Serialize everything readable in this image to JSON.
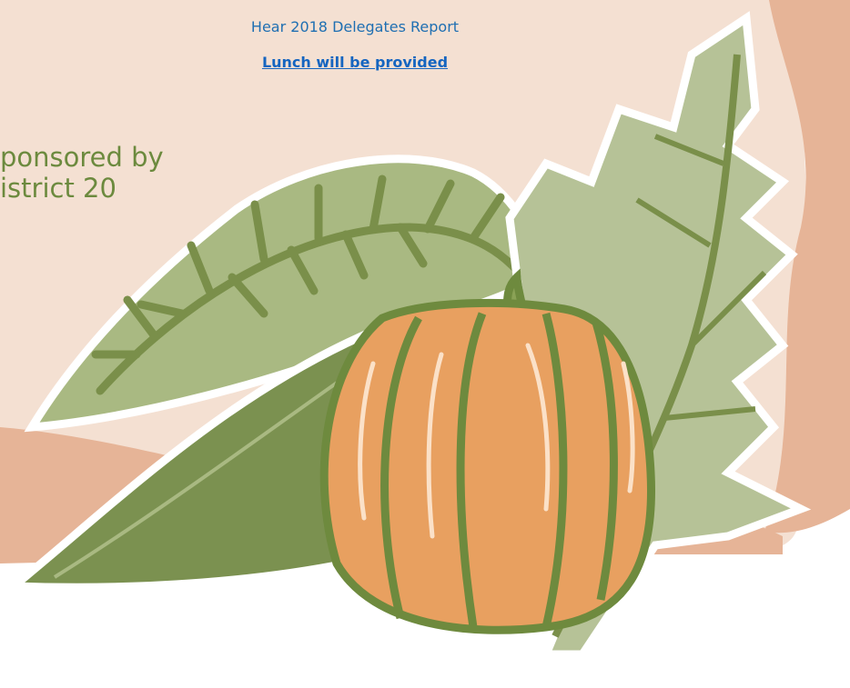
{
  "header": {
    "report_line": "Hear 2018 Delegates Report",
    "lunch_line": "Lunch will be provided"
  },
  "sponsor": {
    "line1": "ponsored by",
    "line2": "istrict 20"
  }
}
